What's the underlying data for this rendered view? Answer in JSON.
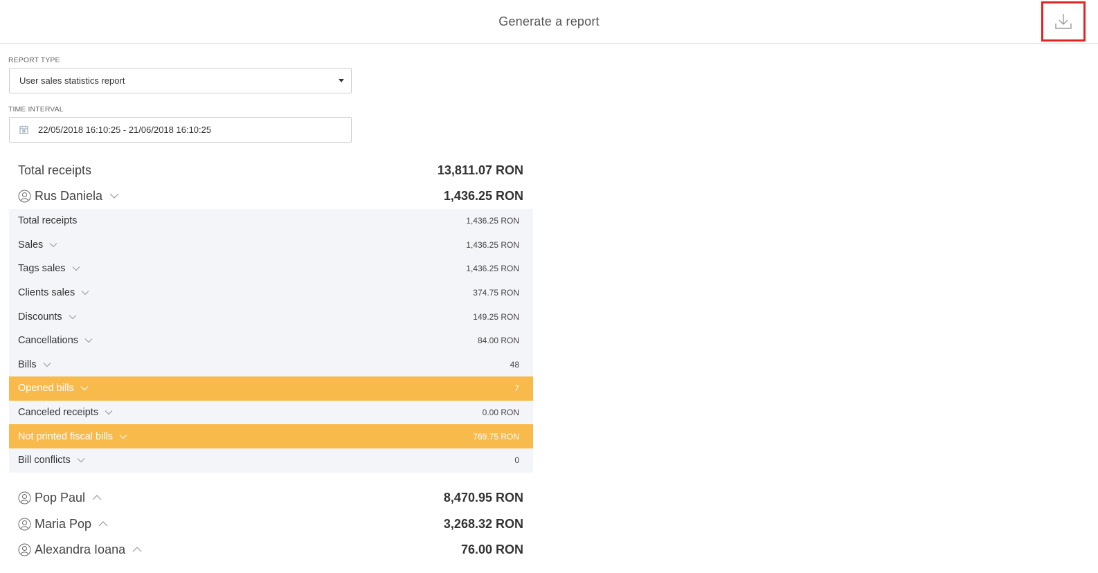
{
  "header": {
    "title": "Generate a report"
  },
  "report_type": {
    "label": "REPORT TYPE",
    "value": "User sales statistics report"
  },
  "time_interval": {
    "label": "TIME INTERVAL",
    "value": "22/05/2018 16:10:25 - 21/06/2018 16:10:25"
  },
  "total": {
    "label": "Total receipts",
    "value": "13,811.07 RON"
  },
  "users": [
    {
      "name": "Rus Daniela",
      "value": "1,436.25 RON",
      "expanded": true
    },
    {
      "name": "Pop Paul",
      "value": "8,470.95 RON",
      "expanded": false
    },
    {
      "name": "Maria Pop",
      "value": "3,268.32 RON",
      "expanded": false
    },
    {
      "name": "Alexandra Ioana",
      "value": "76.00 RON",
      "expanded": false
    }
  ],
  "details": [
    {
      "label": "Total receipts",
      "value": "1,436.25 RON",
      "highlight": false,
      "chevron": false
    },
    {
      "label": "Sales",
      "value": "1,436.25 RON",
      "highlight": false,
      "chevron": true
    },
    {
      "label": "Tags sales",
      "value": "1,436.25 RON",
      "highlight": false,
      "chevron": true
    },
    {
      "label": "Clients sales",
      "value": "374.75 RON",
      "highlight": false,
      "chevron": true
    },
    {
      "label": "Discounts",
      "value": "149.25 RON",
      "highlight": false,
      "chevron": true
    },
    {
      "label": "Cancellations",
      "value": "84.00 RON",
      "highlight": false,
      "chevron": true
    },
    {
      "label": "Bills",
      "value": "48",
      "highlight": false,
      "chevron": true
    },
    {
      "label": "Opened bills",
      "value": "7",
      "highlight": true,
      "chevron": true
    },
    {
      "label": "Canceled receipts",
      "value": "0.00 RON",
      "highlight": false,
      "chevron": true
    },
    {
      "label": "Not printed fiscal bills",
      "value": "769.75 RON",
      "highlight": true,
      "chevron": true
    },
    {
      "label": "Bill conflicts",
      "value": "0",
      "highlight": false,
      "chevron": true
    }
  ],
  "colors": {
    "highlight": "#f8ba4b",
    "download_border": "#e52222",
    "detail_bg": "#f4f5f9"
  },
  "icons": {
    "download": "download-icon",
    "calendar": "calendar-icon",
    "user": "user-icon",
    "caret": "caret-down-icon"
  }
}
